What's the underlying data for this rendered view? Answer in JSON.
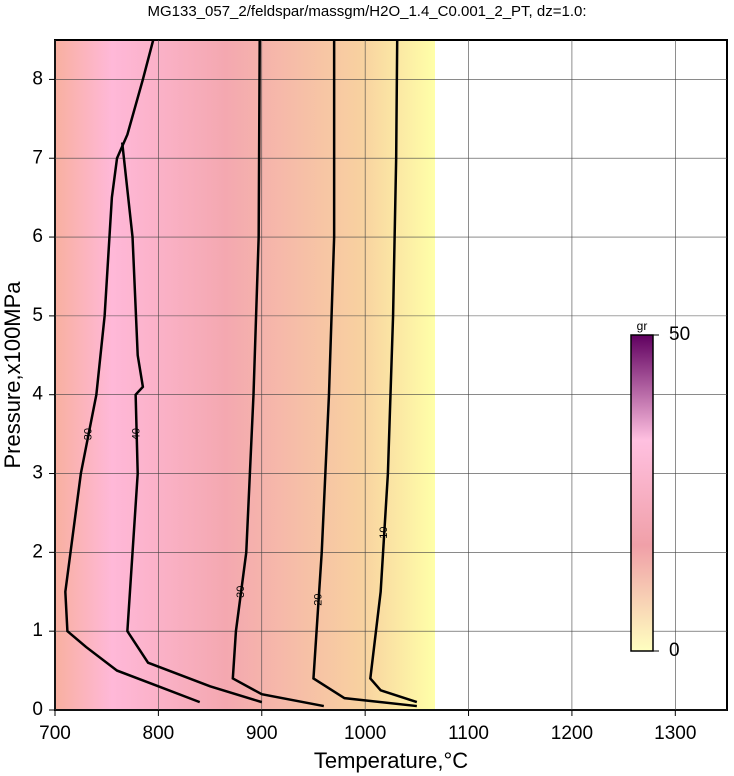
{
  "chart_data": {
    "type": "contour",
    "title": "MG133_057_2/feldspar/massgm/H2O_1.4_C0.001_2_PT, dz=1.0:",
    "xlabel": "Temperature,°C",
    "ylabel": "Pressure,x100MPa",
    "xlim": [
      700,
      1350
    ],
    "ylim": [
      0,
      8.5
    ],
    "xticks": [
      700,
      800,
      900,
      1000,
      1100,
      1200,
      1300
    ],
    "yticks": [
      0,
      1,
      2,
      3,
      4,
      5,
      6,
      7,
      8
    ],
    "grid": true,
    "contours": [
      {
        "level": 10,
        "x": [
          1031,
          1030,
          1027,
          1022,
          1015,
          1005,
          1015,
          1050
        ],
        "y": [
          8.5,
          7,
          5,
          3,
          1.5,
          0.4,
          0.25,
          0.1
        ]
      },
      {
        "level": 20,
        "x": [
          970,
          970,
          965,
          958,
          952,
          950,
          980,
          1050
        ],
        "y": [
          8.5,
          6,
          4,
          2,
          0.8,
          0.4,
          0.15,
          0.05
        ]
      },
      {
        "level": 30,
        "x": [
          898,
          897,
          892,
          885,
          875,
          872,
          900,
          960
        ],
        "y": [
          8.5,
          6,
          4,
          2,
          1,
          0.4,
          0.2,
          0.05
        ]
      },
      {
        "level": 30,
        "x": [
          795,
          785,
          770,
          760,
          755,
          748,
          740,
          725,
          715,
          710,
          712,
          730,
          760,
          800,
          840
        ],
        "y": [
          8.5,
          8,
          7.3,
          7,
          6.5,
          5,
          4,
          3,
          2,
          1.5,
          1,
          0.8,
          0.5,
          0.3,
          0.1
        ]
      },
      {
        "level": 40,
        "x": [
          765,
          775,
          780,
          785,
          778,
          780,
          775,
          770,
          790,
          850,
          900
        ],
        "y": [
          7.2,
          6,
          4.5,
          4.1,
          4,
          3,
          2,
          1,
          0.6,
          0.3,
          0.1
        ]
      }
    ],
    "colorbar": {
      "label": "gr",
      "lim": [
        0,
        50
      ],
      "ticks": [
        0,
        50
      ],
      "colors": [
        "#ffffc0",
        "#f0a0a8",
        "#ffc0e0",
        "#600060"
      ]
    }
  }
}
